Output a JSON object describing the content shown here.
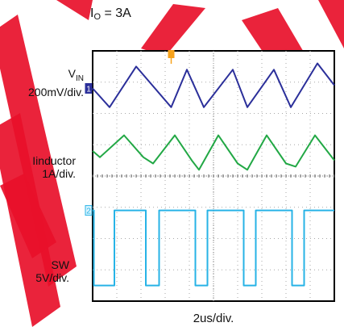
{
  "conditions": {
    "prefix": "I",
    "sub": "O",
    "suffix": " = 3A"
  },
  "colors": {
    "vin": "#2b2f9a",
    "inductor": "#22a845",
    "sw": "#27b3e6",
    "watermark": "#e8102a",
    "grid": "#a8a8a8"
  },
  "chart_data": {
    "type": "line",
    "title": "",
    "xlabel": "2us/div.",
    "x_divisions": 10,
    "y_divisions": 8,
    "grid": true,
    "series": [
      {
        "name": "VIN",
        "label_main": "V",
        "label_sub": "IN",
        "scale": "200mV/div.",
        "marker": "1",
        "x": [
          0,
          0.7,
          1.8,
          3.25,
          3.9,
          4.6,
          5.8,
          6.4,
          7.5,
          8.2,
          9.3,
          10
        ],
        "y": [
          6.8,
          6.2,
          7.5,
          6.2,
          7.4,
          6.2,
          7.4,
          6.2,
          7.4,
          6.2,
          7.6,
          6.9
        ]
      },
      {
        "name": "Iinductor",
        "label_main": "Iinductor",
        "scale": "1A/div.",
        "marker": "",
        "x": [
          0,
          0.3,
          1.3,
          2.1,
          2.5,
          3.4,
          4.1,
          4.4,
          5.2,
          6.0,
          6.4,
          7.2,
          8.0,
          8.4,
          9.2,
          10
        ],
        "y": [
          4.8,
          4.6,
          5.3,
          4.6,
          4.4,
          5.3,
          4.5,
          4.2,
          5.3,
          4.4,
          4.2,
          5.3,
          4.4,
          4.3,
          5.3,
          4.5
        ]
      },
      {
        "name": "SW",
        "label_main": "SW",
        "scale": "5V/div.",
        "marker": "2",
        "x": [
          0,
          0.05,
          0.05,
          0.9,
          0.9,
          2.2,
          2.2,
          2.75,
          2.75,
          4.25,
          4.25,
          4.75,
          4.75,
          6.25,
          6.25,
          6.75,
          6.75,
          8.25,
          8.25,
          8.75,
          8.75,
          10
        ],
        "y": [
          2.9,
          2.9,
          0.5,
          0.5,
          2.9,
          2.9,
          0.5,
          0.5,
          2.9,
          2.9,
          0.5,
          0.5,
          2.9,
          2.9,
          0.5,
          0.5,
          2.9,
          2.9,
          0.5,
          0.5,
          2.9,
          2.9
        ]
      }
    ]
  }
}
